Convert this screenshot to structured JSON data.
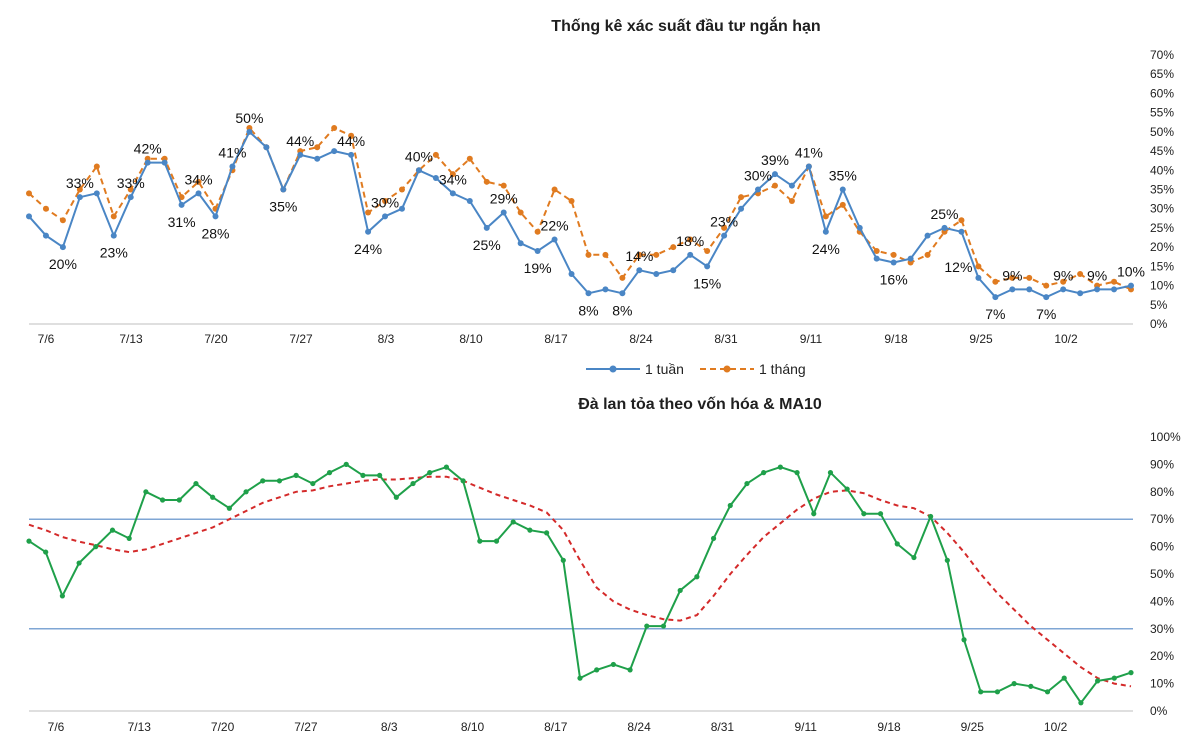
{
  "chart_data": [
    {
      "type": "line",
      "title": "Thống kê xác suất đầu tư ngắn hạn",
      "xlabel": "",
      "ylabel": "",
      "x_ticks": [
        "7/6",
        "7/13",
        "7/20",
        "7/27",
        "8/3",
        "8/10",
        "8/17",
        "8/24",
        "8/31",
        "9/11",
        "9/18",
        "9/25",
        "10/2"
      ],
      "y_ticks": [
        "0%",
        "5%",
        "10%",
        "15%",
        "20%",
        "25%",
        "30%",
        "35%",
        "40%",
        "45%",
        "50%",
        "55%",
        "60%",
        "65%",
        "70%"
      ],
      "ylim": [
        0,
        70
      ],
      "y_axis_side": "right",
      "grid": false,
      "legend_position": "bottom",
      "series": [
        {
          "name": "1 tuần",
          "color": "#4a86c5",
          "style": "solid",
          "values": [
            28,
            23,
            20,
            33,
            34,
            23,
            33,
            42,
            42,
            31,
            34,
            28,
            41,
            50,
            46,
            35,
            44,
            43,
            45,
            44,
            24,
            28,
            30,
            40,
            38,
            34,
            32,
            25,
            29,
            21,
            19,
            22,
            13,
            8,
            9,
            8,
            14,
            13,
            14,
            18,
            15,
            23,
            30,
            35,
            39,
            36,
            41,
            24,
            35,
            25,
            17,
            16,
            17,
            23,
            25,
            24,
            12,
            7,
            9,
            9,
            7,
            9,
            8,
            9,
            9,
            10
          ]
        },
        {
          "name": "1 tháng",
          "color": "#e07b20",
          "style": "dashed",
          "values": [
            34,
            30,
            27,
            35,
            41,
            28,
            35,
            43,
            43,
            33,
            37,
            30,
            40,
            51,
            46,
            35,
            45,
            46,
            51,
            49,
            29,
            32,
            35,
            40,
            44,
            39,
            43,
            37,
            36,
            29,
            24,
            35,
            32,
            18,
            18,
            12,
            18,
            18,
            20,
            22,
            19,
            25,
            33,
            34,
            36,
            32,
            41,
            28,
            31,
            24,
            19,
            18,
            16,
            18,
            24,
            27,
            15,
            11,
            12,
            12,
            10,
            11,
            13,
            10,
            11,
            9
          ]
        }
      ],
      "data_labels": [
        {
          "i": 2,
          "text": "20%",
          "pos": "below"
        },
        {
          "i": 3,
          "text": "33%",
          "pos": "above"
        },
        {
          "i": 5,
          "text": "23%",
          "pos": "below"
        },
        {
          "i": 6,
          "text": "33%",
          "pos": "above"
        },
        {
          "i": 7,
          "text": "42%",
          "pos": "above"
        },
        {
          "i": 9,
          "text": "31%",
          "pos": "below"
        },
        {
          "i": 10,
          "text": "34%",
          "pos": "above"
        },
        {
          "i": 11,
          "text": "28%",
          "pos": "below"
        },
        {
          "i": 12,
          "text": "41%",
          "pos": "above"
        },
        {
          "i": 13,
          "text": "50%",
          "pos": "above"
        },
        {
          "i": 15,
          "text": "35%",
          "pos": "below"
        },
        {
          "i": 16,
          "text": "44%",
          "pos": "above"
        },
        {
          "i": 19,
          "text": "44%",
          "pos": "above"
        },
        {
          "i": 20,
          "text": "24%",
          "pos": "below"
        },
        {
          "i": 21,
          "text": "30%",
          "pos": "above"
        },
        {
          "i": 23,
          "text": "40%",
          "pos": "above"
        },
        {
          "i": 25,
          "text": "34%",
          "pos": "above"
        },
        {
          "i": 27,
          "text": "25%",
          "pos": "below"
        },
        {
          "i": 28,
          "text": "29%",
          "pos": "above"
        },
        {
          "i": 30,
          "text": "19%",
          "pos": "below"
        },
        {
          "i": 31,
          "text": "22%",
          "pos": "above"
        },
        {
          "i": 33,
          "text": "8%",
          "pos": "below"
        },
        {
          "i": 35,
          "text": "8%",
          "pos": "below"
        },
        {
          "i": 36,
          "text": "14%",
          "pos": "above"
        },
        {
          "i": 39,
          "text": "18%",
          "pos": "above"
        },
        {
          "i": 40,
          "text": "15%",
          "pos": "below"
        },
        {
          "i": 41,
          "text": "23%",
          "pos": "above"
        },
        {
          "i": 43,
          "text": "30%",
          "pos": "above"
        },
        {
          "i": 44,
          "text": "39%",
          "pos": "above"
        },
        {
          "i": 46,
          "text": "41%",
          "pos": "above"
        },
        {
          "i": 47,
          "text": "24%",
          "pos": "below"
        },
        {
          "i": 48,
          "text": "35%",
          "pos": "above"
        },
        {
          "i": 51,
          "text": "16%",
          "pos": "below"
        },
        {
          "i": 54,
          "text": "25%",
          "pos": "above"
        },
        {
          "i": 56,
          "text": "12%",
          "pos": "above-left"
        },
        {
          "i": 57,
          "text": "7%",
          "pos": "below"
        },
        {
          "i": 58,
          "text": "9%",
          "pos": "above"
        },
        {
          "i": 60,
          "text": "7%",
          "pos": "below"
        },
        {
          "i": 61,
          "text": "9%",
          "pos": "above"
        },
        {
          "i": 63,
          "text": "9%",
          "pos": "above"
        },
        {
          "i": 65,
          "text": "10%",
          "pos": "above"
        }
      ]
    },
    {
      "type": "line",
      "title": "Đà lan tỏa theo vốn hóa & MA10",
      "xlabel": "",
      "ylabel": "",
      "x_ticks": [
        "7/6",
        "7/13",
        "7/20",
        "7/27",
        "8/3",
        "8/10",
        "8/17",
        "8/24",
        "8/31",
        "9/11",
        "9/18",
        "9/25",
        "10/2"
      ],
      "y_ticks": [
        "0%",
        "10%",
        "20%",
        "30%",
        "40%",
        "50%",
        "60%",
        "70%",
        "80%",
        "90%",
        "100%"
      ],
      "ylim": [
        0,
        100
      ],
      "y_axis_side": "right",
      "grid": false,
      "reference_lines": [
        30,
        70
      ],
      "reference_line_color": "#7fa6d4",
      "series": [
        {
          "name": "",
          "color": "#1fa04a",
          "style": "solid",
          "values": [
            62,
            58,
            42,
            54,
            60,
            66,
            63,
            80,
            77,
            77,
            83,
            78,
            74,
            80,
            84,
            84,
            86,
            83,
            87,
            90,
            86,
            86,
            78,
            83,
            87,
            89,
            84,
            62,
            62,
            69,
            66,
            65,
            55,
            12,
            15,
            17,
            15,
            31,
            31,
            44,
            49,
            63,
            75,
            83,
            87,
            89,
            87,
            72,
            87,
            81,
            72,
            72,
            61,
            56,
            71,
            55,
            26,
            7,
            7,
            10,
            9,
            7,
            12,
            3,
            11,
            12,
            14
          ]
        },
        {
          "name": "",
          "color": "#d42a2a",
          "style": "dashed",
          "values": [
            68,
            66,
            63.5,
            61.8,
            60.5,
            59,
            58,
            59,
            61,
            63,
            65,
            67,
            70,
            73,
            76,
            78,
            80,
            80.5,
            82,
            83,
            84,
            84.5,
            84.5,
            85,
            85.5,
            85.5,
            84,
            81.5,
            79,
            77,
            75,
            72.5,
            66,
            55,
            45,
            40,
            37,
            35,
            33.5,
            33,
            35,
            42,
            50,
            57,
            63.5,
            68.5,
            73.5,
            77.5,
            80,
            80.5,
            79.5,
            77,
            75,
            74,
            71,
            65,
            58,
            50,
            43,
            37,
            31,
            26,
            21,
            16,
            12,
            10,
            9
          ]
        }
      ]
    }
  ]
}
